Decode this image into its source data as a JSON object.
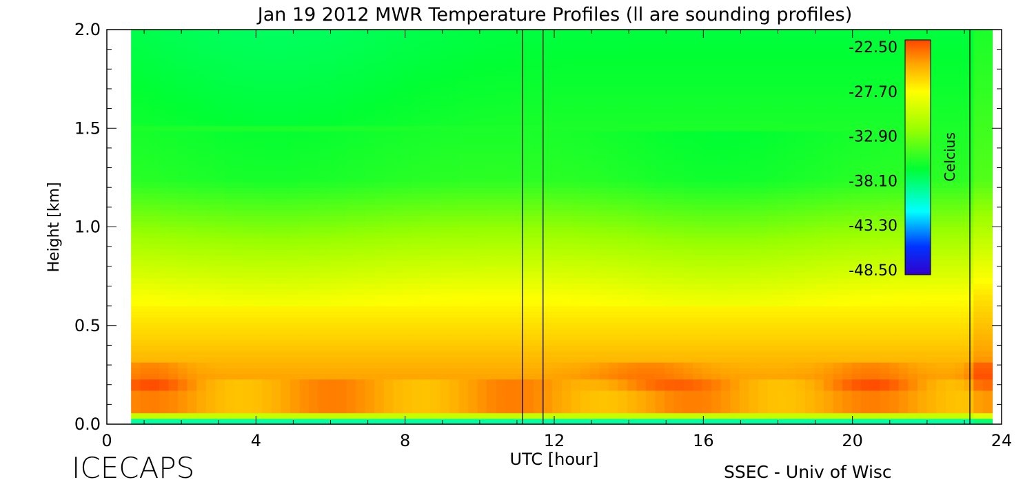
{
  "page": {
    "footer_left": "ICECAPS",
    "footer_right": "SSEC - Univ of Wisc"
  },
  "chart_data": {
    "type": "heatmap",
    "title": "Jan 19 2012 MWR Temperature Profiles (ll are sounding profiles)",
    "xlabel": "UTC [hour]",
    "ylabel": "Height [km]",
    "xlim": [
      0,
      24
    ],
    "ylim": [
      0,
      2.0
    ],
    "x_ticks": [
      0,
      4,
      8,
      12,
      16,
      20,
      24
    ],
    "y_ticks": [
      "0.0",
      "0.5",
      "1.0",
      "1.5",
      "2.0"
    ],
    "data_x_range": [
      0.65,
      23.75
    ],
    "sounding_lines_hour": [
      11.15,
      11.7,
      23.15
    ],
    "colorbar": {
      "label": "Celcius",
      "ticks": [
        "-22.50",
        "-27.70",
        "-32.90",
        "-38.10",
        "-43.30",
        "-48.50"
      ],
      "range": [
        -48.5,
        -22.5
      ],
      "colors": {
        "min": "#3300cc",
        "blue": "#0033ff",
        "cyan": "#00ffff",
        "green": "#00ff33",
        "yellow": "#ffff00",
        "orange": "#ff9900",
        "max": "#ff4400"
      }
    }
  }
}
